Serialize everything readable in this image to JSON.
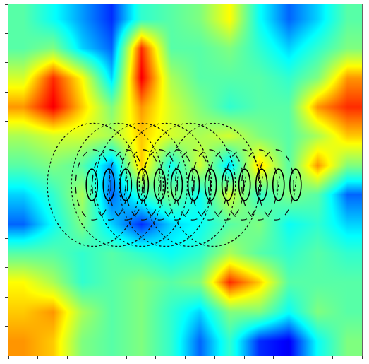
{
  "chart_data": {
    "type": "heatmap",
    "x": [
      0.5,
      1.5,
      2.5,
      3.5,
      4.5,
      5.5,
      6.5,
      7.5,
      8.5,
      9.5,
      10.5,
      11.5
    ],
    "y": [
      11.5,
      10.5,
      9.5,
      8.5,
      7.5,
      6.5,
      5.5,
      4.5,
      3.5,
      2.5,
      1.5,
      0.5
    ],
    "cells": [
      [
        0.45,
        0.35,
        0.25,
        0.15,
        0.4,
        0.45,
        0.5,
        0.65,
        0.35,
        0.2,
        0.3,
        0.45
      ],
      [
        0.45,
        0.5,
        0.3,
        0.2,
        0.85,
        0.45,
        0.45,
        0.5,
        0.4,
        0.3,
        0.4,
        0.5
      ],
      [
        0.6,
        0.85,
        0.65,
        0.3,
        0.9,
        0.55,
        0.45,
        0.45,
        0.45,
        0.4,
        0.5,
        0.75
      ],
      [
        0.75,
        0.9,
        0.7,
        0.5,
        0.75,
        0.6,
        0.5,
        0.4,
        0.45,
        0.45,
        0.75,
        0.85
      ],
      [
        0.55,
        0.6,
        0.6,
        0.55,
        0.7,
        0.6,
        0.55,
        0.6,
        0.5,
        0.45,
        0.55,
        0.7
      ],
      [
        0.45,
        0.5,
        0.45,
        0.25,
        0.7,
        0.35,
        0.6,
        0.3,
        0.7,
        0.45,
        0.75,
        0.5
      ],
      [
        0.3,
        0.4,
        0.55,
        0.2,
        0.4,
        0.5,
        0.35,
        0.6,
        0.4,
        0.5,
        0.45,
        0.2
      ],
      [
        0.2,
        0.35,
        0.5,
        0.3,
        0.15,
        0.3,
        0.35,
        0.45,
        0.5,
        0.35,
        0.4,
        0.3
      ],
      [
        0.45,
        0.45,
        0.4,
        0.45,
        0.4,
        0.35,
        0.4,
        0.55,
        0.45,
        0.4,
        0.45,
        0.4
      ],
      [
        0.65,
        0.55,
        0.4,
        0.45,
        0.5,
        0.45,
        0.5,
        0.85,
        0.7,
        0.45,
        0.45,
        0.45
      ],
      [
        0.7,
        0.75,
        0.55,
        0.45,
        0.5,
        0.4,
        0.3,
        0.5,
        0.5,
        0.35,
        0.5,
        0.45
      ],
      [
        0.75,
        0.7,
        0.5,
        0.45,
        0.5,
        0.4,
        0.2,
        0.4,
        0.15,
        0.1,
        0.35,
        0.5
      ]
    ],
    "color_range": [
      0,
      1
    ],
    "xlim": [
      0,
      12
    ],
    "ylim": [
      0,
      12
    ],
    "xticks": [
      0,
      1,
      2,
      3,
      4,
      5,
      6,
      7,
      8,
      9,
      10,
      11,
      12
    ],
    "yticks": [
      0,
      1,
      2,
      3,
      4,
      5,
      6,
      7,
      8,
      9,
      10,
      11,
      12
    ],
    "tick_labels": false
  }
}
